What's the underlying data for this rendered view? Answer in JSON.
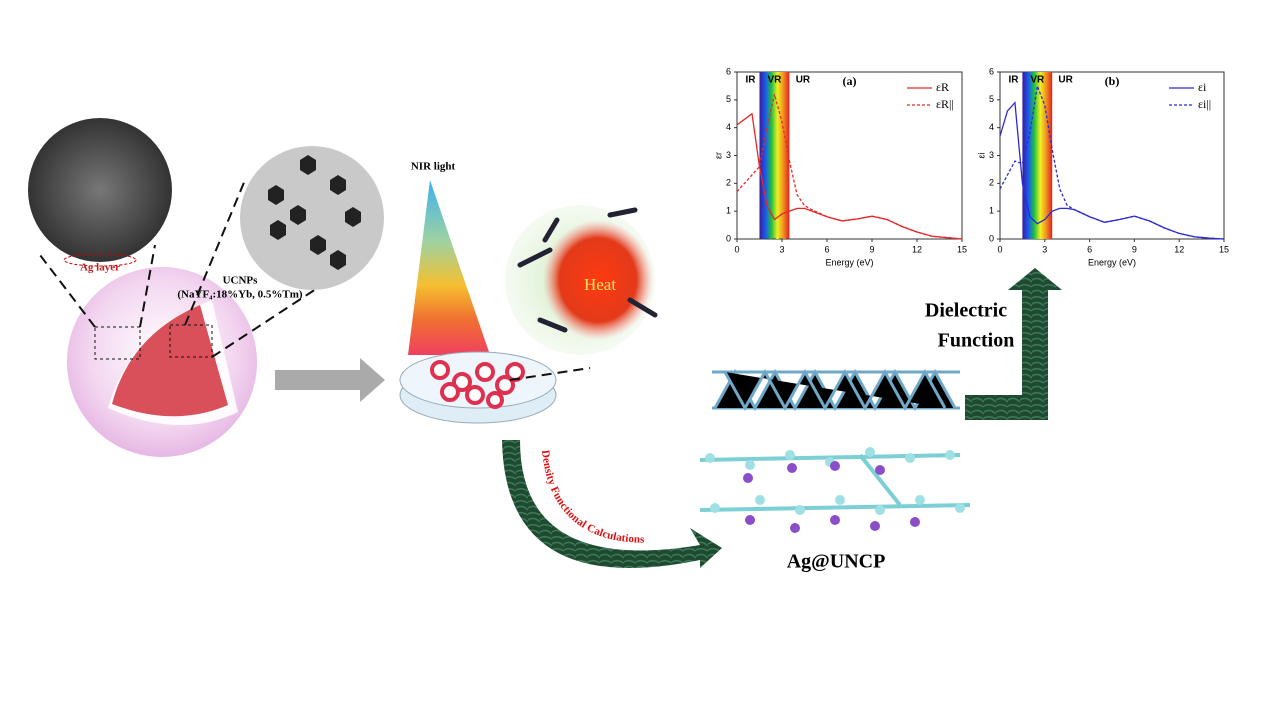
{
  "labels": {
    "ag_layer": "Ag layer",
    "ucnps": "UCNPs",
    "ucnps_formula": "(NaYF₄:18%Yb, 0.5%Tm)",
    "nir": "NIR light",
    "heat": "Heat",
    "dft": "Density Functional Calculations",
    "dielectric_1": "Dielectric",
    "dielectric_2": "Function",
    "product": "Ag@UNCP"
  },
  "chart_data": [
    {
      "type": "line",
      "title": "(a)",
      "xlabel": "Energy (eV)",
      "ylabel": "εr",
      "annotations": [
        "IR",
        "VR",
        "UR"
      ],
      "x": [
        0,
        0.5,
        1,
        1.5,
        2,
        2.5,
        3,
        3.5,
        4,
        4.5,
        5,
        6,
        7,
        8,
        9,
        10,
        11,
        12,
        13,
        14,
        15
      ],
      "series": [
        {
          "name": "εR",
          "color": "#e8262a",
          "dashed": false,
          "values": [
            4.1,
            4.3,
            4.5,
            2.6,
            1.2,
            0.7,
            0.9,
            1.0,
            1.1,
            1.1,
            1.0,
            0.8,
            0.65,
            0.72,
            0.82,
            0.7,
            0.45,
            0.25,
            0.1,
            0.05,
            0.0
          ]
        },
        {
          "name": "εR||",
          "color": "#e8262a",
          "dashed": true,
          "values": [
            1.7,
            2.0,
            2.3,
            2.6,
            4.0,
            5.2,
            4.2,
            2.8,
            1.6,
            1.2,
            1.05,
            0.8,
            0.65,
            0.72,
            0.82,
            0.7,
            0.45,
            0.25,
            0.1,
            0.05,
            0.0
          ]
        }
      ],
      "xlim": [
        0,
        15
      ],
      "xticks": [
        0,
        3,
        6,
        9,
        12,
        15
      ],
      "ylim": [
        0,
        6
      ],
      "yticks": [
        0,
        1,
        2,
        3,
        4,
        5,
        6
      ],
      "zero_line": true
    },
    {
      "type": "line",
      "title": "(b)",
      "xlabel": "Energy (eV)",
      "ylabel": "εi",
      "annotations": [
        "IR",
        "VR",
        "UR"
      ],
      "x": [
        0,
        0.5,
        1,
        1.5,
        2,
        2.5,
        3,
        3.5,
        4,
        4.5,
        5,
        6,
        7,
        8,
        9,
        10,
        11,
        12,
        13,
        14,
        15
      ],
      "series": [
        {
          "name": "εi",
          "color": "#2b2bd6",
          "dashed": false,
          "values": [
            3.7,
            4.6,
            4.9,
            2.0,
            0.8,
            0.55,
            0.7,
            1.0,
            1.1,
            1.1,
            1.05,
            0.8,
            0.6,
            0.7,
            0.82,
            0.65,
            0.4,
            0.2,
            0.08,
            0.03,
            0.0
          ]
        },
        {
          "name": "εi||",
          "color": "#2b2bd6",
          "dashed": true,
          "values": [
            1.8,
            2.3,
            2.8,
            2.7,
            3.8,
            5.5,
            4.8,
            3.2,
            1.8,
            1.2,
            1.05,
            0.8,
            0.6,
            0.7,
            0.82,
            0.65,
            0.4,
            0.2,
            0.08,
            0.03,
            0.0
          ]
        }
      ],
      "xlim": [
        0,
        15
      ],
      "xticks": [
        0,
        3,
        6,
        9,
        12,
        15
      ],
      "ylim": [
        0,
        6
      ],
      "yticks": [
        0,
        1,
        2,
        3,
        4,
        5,
        6
      ],
      "zero_line": false
    }
  ]
}
